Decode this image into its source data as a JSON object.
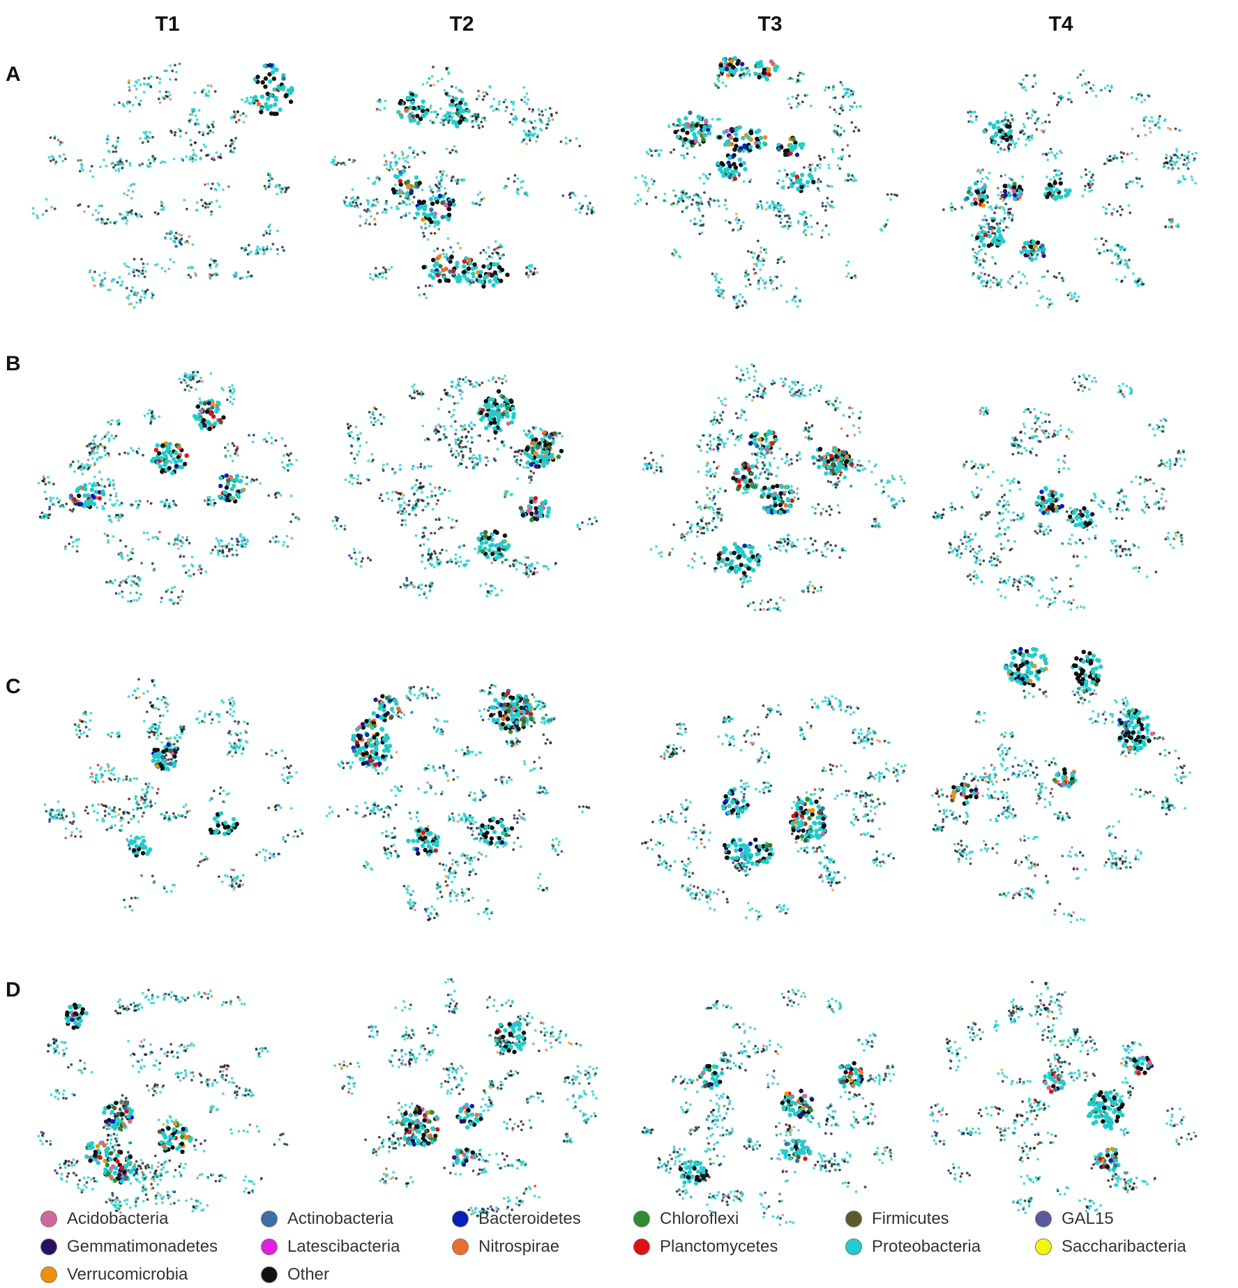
{
  "columns": [
    "T1",
    "T2",
    "T3",
    "T4"
  ],
  "rows": [
    "A",
    "B",
    "C",
    "D"
  ],
  "legend": [
    {
      "label": "Acidobacteria",
      "color": "#d0679e"
    },
    {
      "label": "Actinobacteria",
      "color": "#3a6ea5"
    },
    {
      "label": "Bacteroidetes",
      "color": "#0a1fb8"
    },
    {
      "label": "Chloroflexi",
      "color": "#2e8b2e"
    },
    {
      "label": "Firmicutes",
      "color": "#5b5b2e"
    },
    {
      "label": "GAL15",
      "color": "#5a5a9e"
    },
    {
      "label": "Gemmatimonadetes",
      "color": "#2a1060"
    },
    {
      "label": "Latescibacteria",
      "color": "#e020e0"
    },
    {
      "label": "Nitrospirae",
      "color": "#e8702a"
    },
    {
      "label": "Planctomycetes",
      "color": "#e01010"
    },
    {
      "label": "Proteobacteria",
      "color": "#22cccc"
    },
    {
      "label": "Saccharibacteria",
      "color": "#f4f410"
    },
    {
      "label": "Verrucomicrobia",
      "color": "#f0900a"
    },
    {
      "label": "Other",
      "color": "#111111"
    }
  ]
}
